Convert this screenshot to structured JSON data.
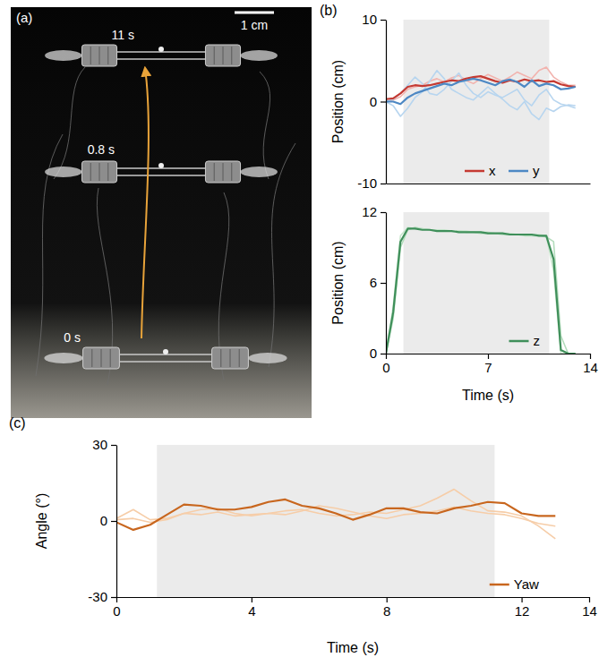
{
  "chart_data": [
    {
      "type": "image",
      "title": "(a)",
      "labels": [
        "11 s",
        "0.8 s",
        "0 s"
      ],
      "scale_bar": "1 cm"
    },
    {
      "type": "line",
      "title": "(b)",
      "ylabel": "Position (cm)",
      "xlim": [
        0,
        14
      ],
      "ylim": [
        -10,
        10
      ],
      "yticks": [
        -10,
        0,
        10
      ],
      "tick_labels": "y",
      "shaded": [
        1.2,
        11.2
      ],
      "legend": "lower right",
      "x": [
        0,
        0.5,
        1,
        1.5,
        2,
        2.5,
        3,
        3.5,
        4,
        4.5,
        5,
        5.5,
        6,
        6.5,
        7,
        7.5,
        8,
        8.5,
        9,
        9.5,
        10,
        10.5,
        11,
        11.5,
        12,
        12.5,
        13
      ],
      "series": [
        {
          "color": "#f2b3ae",
          "values": [
            0,
            0.2,
            0.6,
            1.5,
            1.8,
            2.0,
            2.5,
            2.8,
            2.4,
            2.9,
            3.2,
            2.6,
            2.2,
            2.8,
            3.3,
            2.9,
            2.5,
            3.0,
            3.6,
            3.2,
            2.8,
            3.8,
            4.2,
            3.0,
            2.4,
            2.0,
            2.0
          ]
        },
        {
          "color": "#b7d5ef",
          "values": [
            0,
            -0.5,
            -1.8,
            -0.8,
            0.5,
            1.2,
            2.5,
            3.8,
            2.8,
            1.5,
            1.0,
            0.5,
            0.2,
            1.0,
            1.8,
            1.0,
            0.3,
            -0.5,
            -1.0,
            0.0,
            -1.5,
            -2.2,
            -0.8,
            -1.2,
            -0.6,
            -0.4,
            -0.5
          ]
        },
        {
          "color": "#b7d5ef",
          "values": [
            0,
            0.3,
            1.0,
            2.0,
            3.0,
            2.2,
            1.0,
            0.8,
            1.5,
            2.5,
            3.5,
            2.0,
            1.0,
            0.5,
            1.2,
            0.8,
            0.5,
            1.0,
            1.5,
            0.2,
            -0.5,
            0.8,
            1.5,
            0.2,
            -0.3,
            -0.5,
            -0.8
          ]
        },
        {
          "name": "x",
          "color": "#c53a32",
          "values": [
            0.3,
            0.4,
            1.0,
            1.8,
            2.0,
            1.9,
            2.0,
            2.2,
            2.4,
            2.6,
            2.5,
            2.8,
            3.0,
            3.1,
            2.8,
            2.5,
            2.3,
            2.6,
            2.4,
            2.7,
            2.5,
            2.6,
            2.4,
            2.5,
            2.1,
            1.9,
            1.8
          ]
        },
        {
          "name": "y",
          "color": "#4d88c4",
          "values": [
            0,
            0,
            -0.3,
            0.5,
            1.0,
            1.3,
            1.6,
            1.9,
            2.2,
            2.0,
            2.4,
            2.6,
            2.8,
            2.6,
            2.3,
            2.0,
            2.5,
            2.7,
            2.4,
            1.8,
            2.6,
            1.9,
            2.2,
            2.0,
            1.5,
            1.6,
            1.8
          ]
        }
      ]
    },
    {
      "type": "line",
      "ylabel": "Position (cm)",
      "xlabel": "Time (s)",
      "xlim": [
        0,
        14
      ],
      "xticks": [
        0,
        7,
        14
      ],
      "ylim": [
        0,
        12
      ],
      "yticks": [
        0,
        6,
        12
      ],
      "shaded": [
        1.2,
        11.2
      ],
      "legend": "lower right",
      "x": [
        0,
        0.5,
        1,
        1.5,
        2,
        2.5,
        3,
        3.5,
        4,
        4.5,
        5,
        5.5,
        6,
        6.5,
        7,
        7.5,
        8,
        8.5,
        9,
        9.5,
        10,
        10.5,
        11,
        11.5,
        12,
        12.5,
        13
      ],
      "series": [
        {
          "color": "#b3dcbc",
          "values": [
            0,
            3.0,
            9.0,
            10.5,
            10.7,
            10.6,
            10.5,
            10.5,
            10.4,
            10.4,
            10.4,
            10.3,
            10.3,
            10.2,
            10.2,
            10.2,
            10.1,
            10.1,
            10.1,
            10.0,
            10.0,
            10.0,
            9.9,
            9.5,
            1.5,
            0,
            0
          ]
        },
        {
          "color": "#c8e6cd",
          "values": [
            0,
            4.0,
            10.0,
            10.7,
            10.6,
            10.6,
            10.5,
            10.5,
            10.5,
            10.4,
            10.4,
            10.4,
            10.3,
            10.3,
            10.3,
            10.2,
            10.2,
            10.2,
            10.1,
            10.1,
            10.1,
            10.1,
            10.0,
            7.0,
            0,
            0,
            0
          ]
        },
        {
          "name": "z",
          "color": "#3f8f5a",
          "values": [
            0,
            3.5,
            9.5,
            10.6,
            10.6,
            10.5,
            10.5,
            10.4,
            10.4,
            10.4,
            10.3,
            10.3,
            10.3,
            10.3,
            10.2,
            10.2,
            10.2,
            10.1,
            10.1,
            10.1,
            10.1,
            10.0,
            10.0,
            8.0,
            0.3,
            0,
            0
          ]
        }
      ]
    },
    {
      "type": "line",
      "title": "(c)",
      "ylabel": "Angle (°)",
      "xlabel": "Time (s)",
      "xlim": [
        0,
        14
      ],
      "xticks": [
        0,
        4,
        8,
        12,
        14
      ],
      "ylim": [
        -30,
        30
      ],
      "yticks": [
        -30,
        0,
        30
      ],
      "shaded": [
        1.2,
        11.2
      ],
      "legend": "lower right",
      "x": [
        0,
        0.5,
        1,
        1.5,
        2,
        2.5,
        3,
        3.5,
        4,
        4.5,
        5,
        5.5,
        6,
        6.5,
        7,
        7.5,
        8,
        8.5,
        9,
        9.5,
        10,
        10.5,
        11,
        11.5,
        12,
        12.5,
        13
      ],
      "series": [
        {
          "color": "#f6cda8",
          "values": [
            0.5,
            1.0,
            -0.5,
            0.5,
            3.0,
            2.5,
            3.5,
            2.0,
            2.5,
            3.0,
            4.0,
            4.5,
            3.0,
            2.0,
            2.5,
            3.5,
            3.0,
            4.5,
            6.0,
            9.0,
            12.5,
            8.0,
            4.0,
            3.5,
            2.0,
            -2.0,
            -7.0
          ]
        },
        {
          "color": "#f6cda8",
          "values": [
            1.0,
            4.5,
            0.5,
            1.0,
            3.0,
            4.5,
            5.0,
            3.0,
            2.0,
            3.0,
            2.5,
            4.0,
            6.0,
            5.0,
            3.5,
            2.0,
            1.0,
            2.5,
            3.0,
            4.0,
            5.5,
            4.0,
            3.0,
            2.5,
            1.0,
            -1.0,
            -2.0
          ]
        },
        {
          "name": "Yaw",
          "color": "#c8661e",
          "values": [
            -0.5,
            -3.5,
            -1.5,
            2.5,
            6.5,
            6.0,
            4.5,
            4.5,
            5.5,
            7.5,
            8.5,
            6.0,
            5.0,
            3.0,
            0.5,
            2.5,
            5.0,
            5.0,
            3.5,
            3.0,
            5.0,
            6.0,
            7.5,
            7.0,
            3.0,
            2.0,
            2.0
          ]
        }
      ]
    }
  ]
}
